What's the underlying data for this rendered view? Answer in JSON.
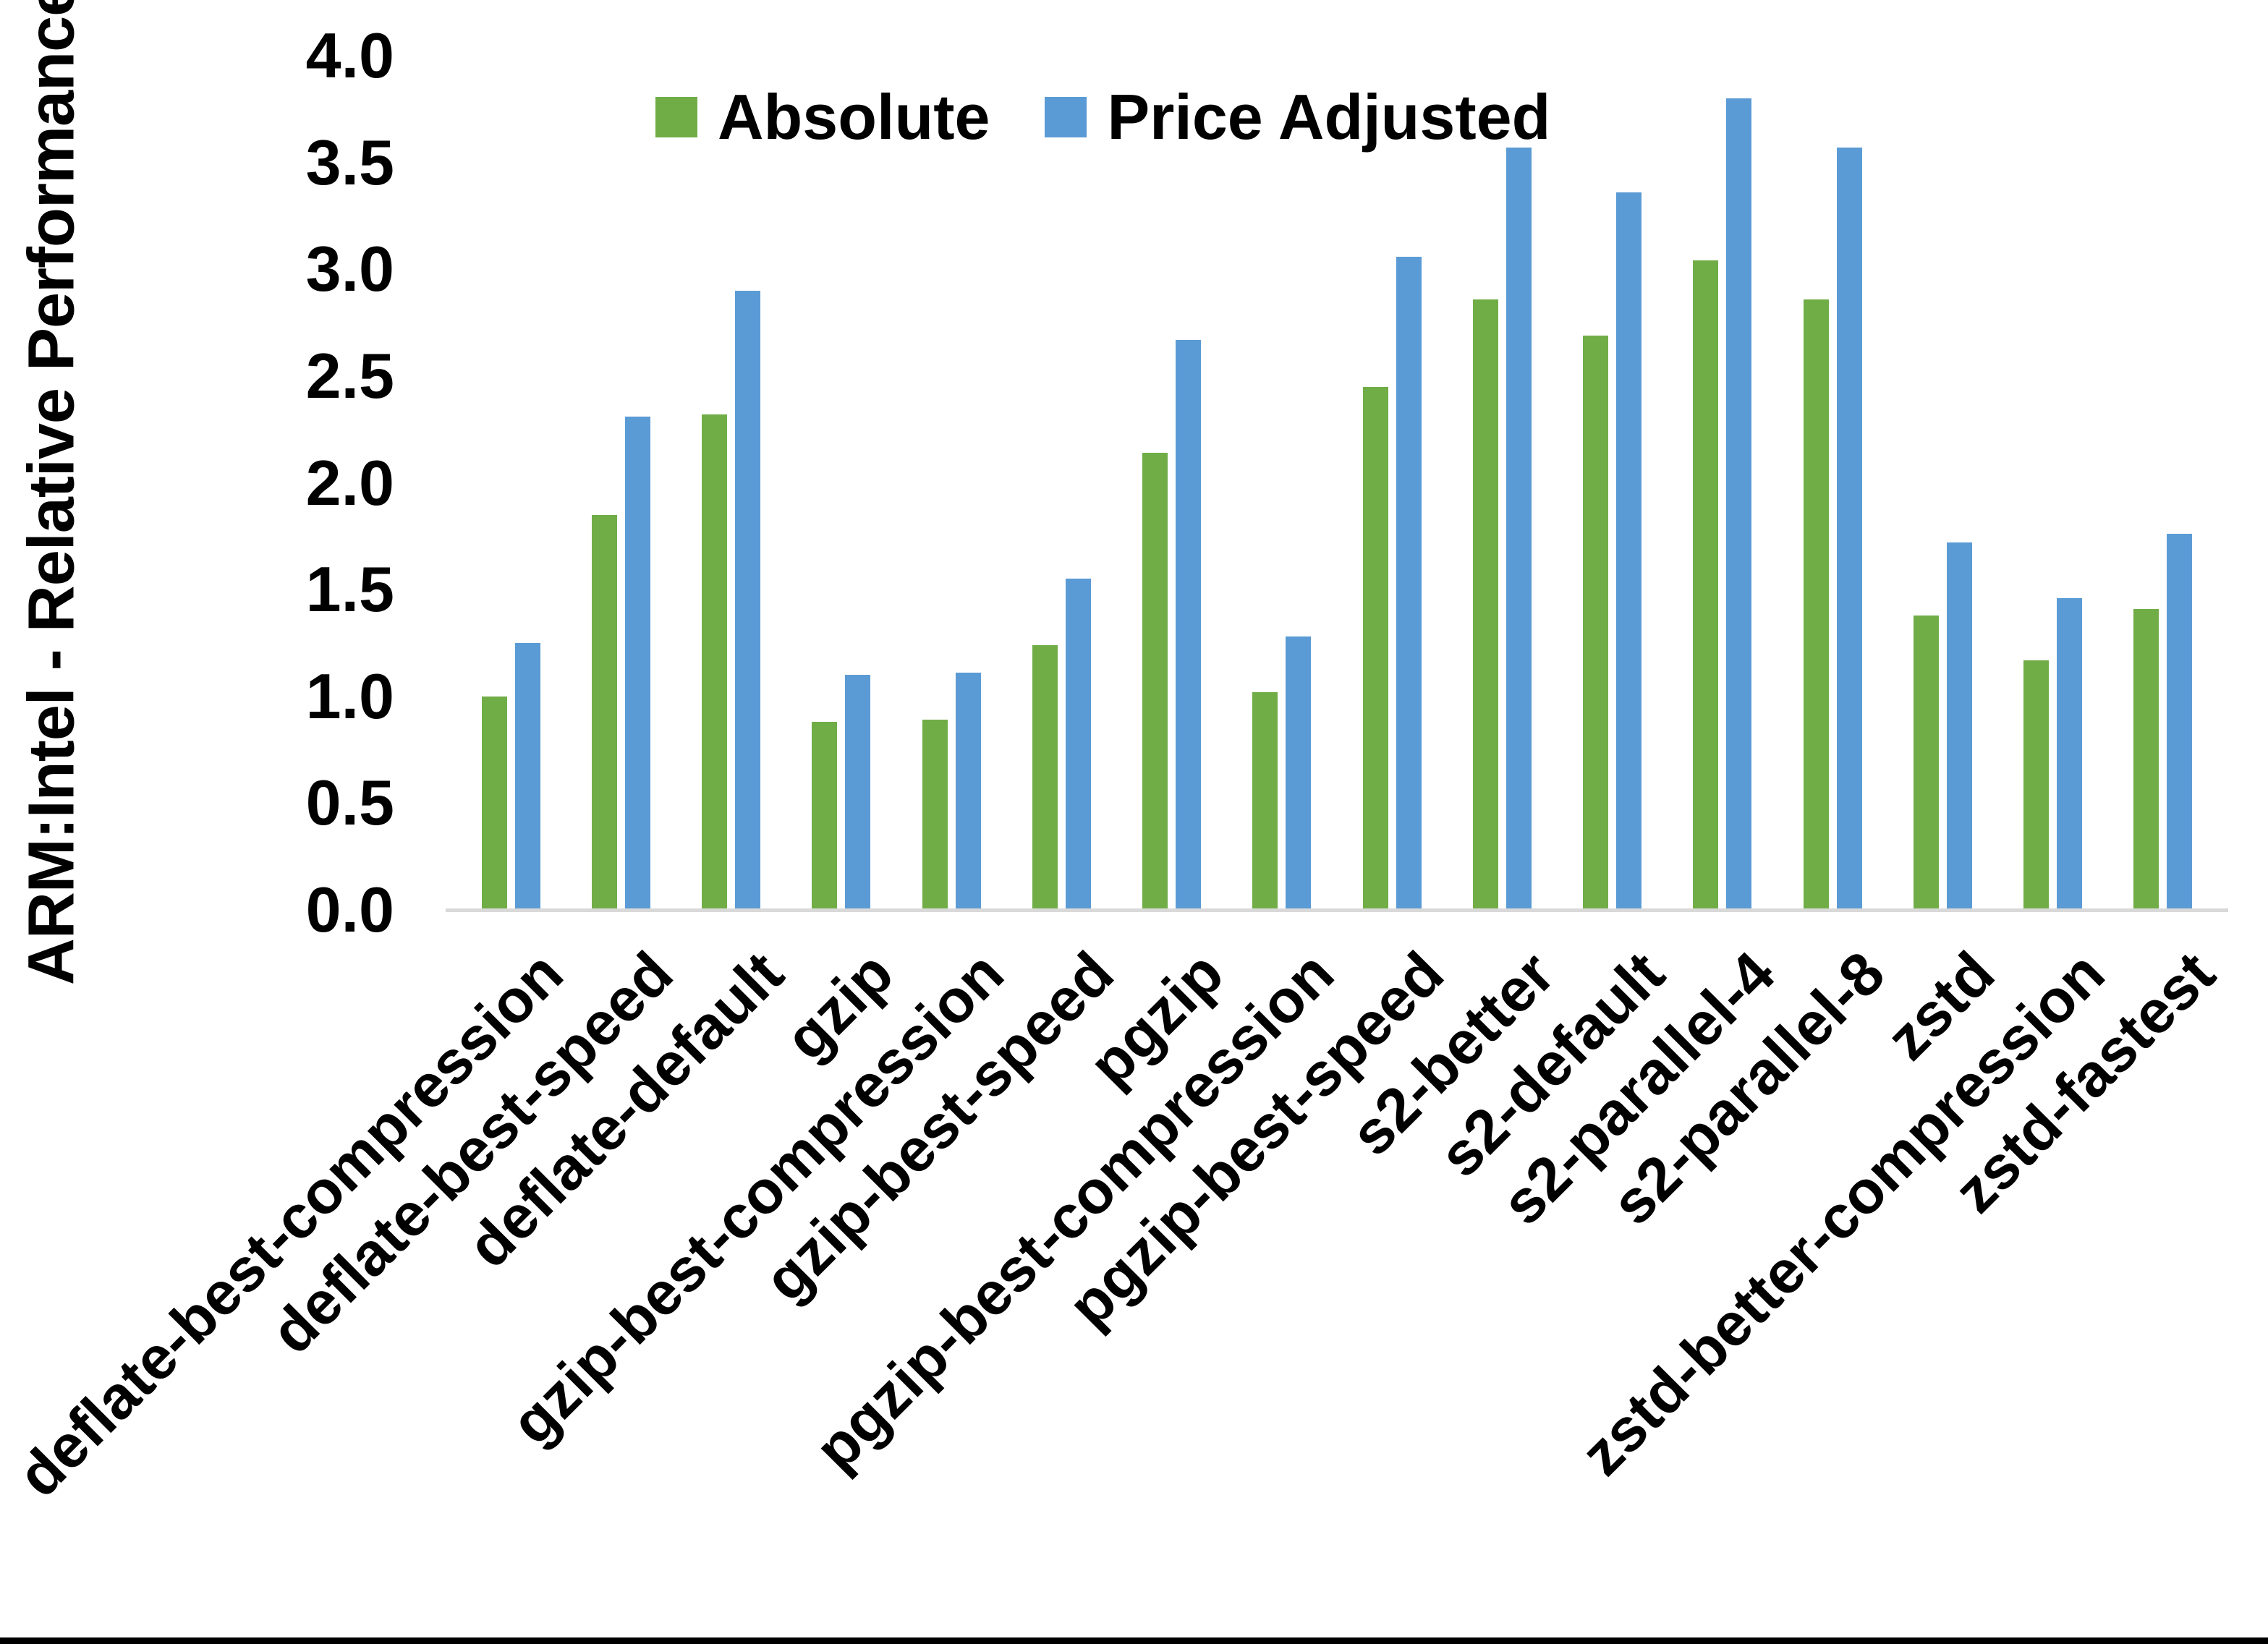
{
  "chart_data": {
    "type": "bar",
    "title": "",
    "ylabel": "ARM:Intel - Relative Performance",
    "xlabel": "",
    "ylim": [
      0,
      4.0
    ],
    "ytick_step": 0.5,
    "yticks": [
      "4.0",
      "3.5",
      "3.0",
      "2.5",
      "2.0",
      "1.5",
      "1.0",
      "0.5",
      "0.0"
    ],
    "grid": false,
    "legend_position": "top-center",
    "categories": [
      "deflate-best-compression",
      "deflate-best-speed",
      "deflate-default",
      "gzip",
      "gzip-best-compression",
      "gzip-best-speed",
      "pgzip",
      "pgzip-best-compression",
      "pgzip-best-speed",
      "s2-better",
      "s2-default",
      "s2-parallel-4",
      "s2-parallel-8",
      "zstd",
      "zstd-better-compression",
      "zstd-fastest"
    ],
    "series": [
      {
        "name": "Absolute",
        "color": "#70AD47",
        "values": [
          1.0,
          1.85,
          2.32,
          0.88,
          0.89,
          1.24,
          2.14,
          1.02,
          2.45,
          2.86,
          2.69,
          3.04,
          2.86,
          1.38,
          1.17,
          1.41
        ]
      },
      {
        "name": "Price Adjusted",
        "color": "#5B9BD5",
        "values": [
          1.25,
          2.31,
          2.9,
          1.1,
          1.11,
          1.55,
          2.67,
          1.28,
          3.06,
          3.57,
          3.36,
          3.8,
          3.57,
          1.72,
          1.46,
          1.76
        ]
      }
    ]
  }
}
